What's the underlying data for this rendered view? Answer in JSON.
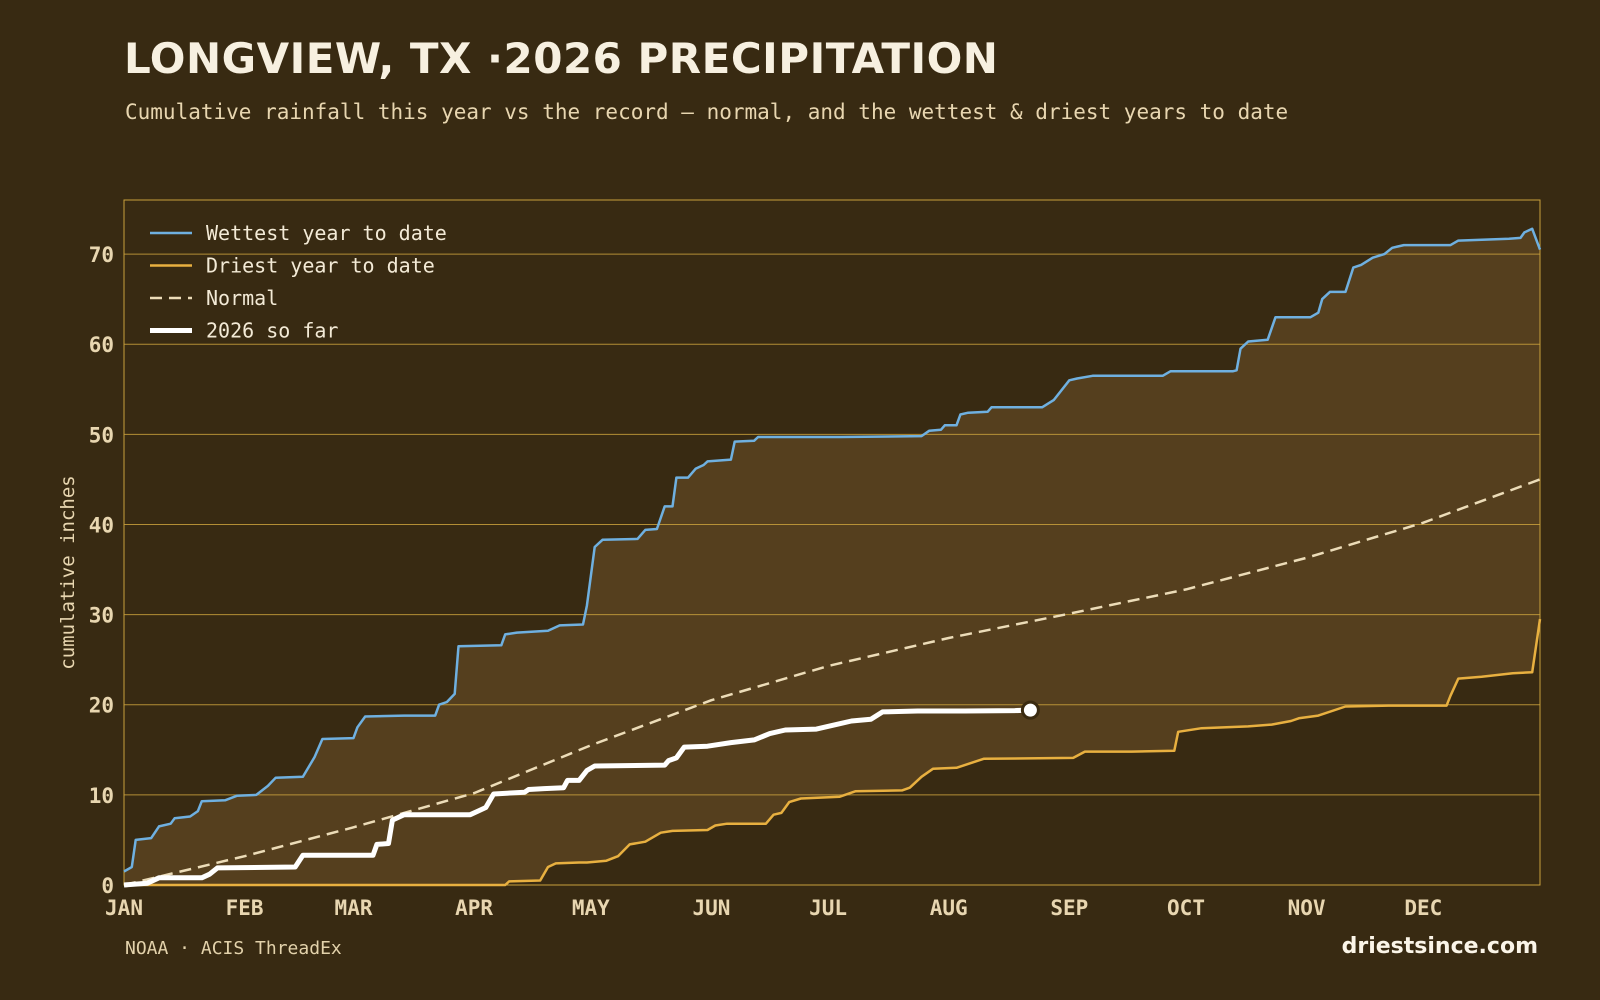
{
  "header": {
    "title": "LONGVIEW, TX ·2026 PRECIPITATION",
    "subtitle": "Cumulative rainfall this year vs the record — normal, and the wettest & driest years to date"
  },
  "footer": {
    "source": "NOAA · ACIS ThreadEx",
    "brand": "driestsince.com"
  },
  "colors": {
    "background": "#382a12",
    "band_fill": "#553f1e",
    "grid": "#c9a03c",
    "wettest": "#6fb0e0",
    "driest": "#e8b040",
    "normal": "#ecdcb8",
    "current": "#ffffff",
    "tick_text": "#e8d6b0"
  },
  "chart_data": {
    "type": "line",
    "ylabel": "cumulative inches",
    "ylim": [
      0,
      76
    ],
    "y_ticks": [
      0,
      10,
      20,
      30,
      40,
      50,
      60,
      70
    ],
    "x_ticks": [
      "JAN",
      "FEB",
      "MAR",
      "APR",
      "MAY",
      "JUN",
      "JUL",
      "AUG",
      "SEP",
      "OCT",
      "NOV",
      "DEC"
    ],
    "x_unit": "day of year",
    "xlim": [
      1,
      365
    ],
    "x_tick_days": [
      1,
      32,
      60,
      91,
      121,
      152,
      182,
      213,
      244,
      274,
      305,
      335
    ],
    "grid": "horizontal",
    "legend_position": "top-left",
    "legend": [
      "Wettest year to date",
      "Driest year to date",
      "Normal",
      "2026 so far"
    ],
    "series": [
      {
        "name": "Wettest year to date",
        "style": "solid",
        "points": [
          [
            1,
            1.5
          ],
          [
            3,
            2
          ],
          [
            4,
            5
          ],
          [
            8,
            5.2
          ],
          [
            10,
            6.5
          ],
          [
            13,
            6.8
          ],
          [
            14,
            7.4
          ],
          [
            18,
            7.6
          ],
          [
            20,
            8.2
          ],
          [
            21,
            9.3
          ],
          [
            27,
            9.4
          ],
          [
            30,
            9.9
          ],
          [
            35,
            10
          ],
          [
            38,
            11
          ],
          [
            40,
            11.9
          ],
          [
            47,
            12
          ],
          [
            50,
            14.2
          ],
          [
            52,
            16.2
          ],
          [
            60,
            16.3
          ],
          [
            61,
            17.5
          ],
          [
            63,
            18.7
          ],
          [
            73,
            18.8
          ],
          [
            81,
            18.8
          ],
          [
            82,
            20
          ],
          [
            84,
            20.3
          ],
          [
            86,
            21.2
          ],
          [
            87,
            26.5
          ],
          [
            98,
            26.6
          ],
          [
            99,
            27.8
          ],
          [
            102,
            28
          ],
          [
            110,
            28.2
          ],
          [
            113,
            28.8
          ],
          [
            119,
            28.9
          ],
          [
            120,
            31
          ],
          [
            122,
            37.5
          ],
          [
            124,
            38.3
          ],
          [
            133,
            38.4
          ],
          [
            135,
            39.4
          ],
          [
            138,
            39.5
          ],
          [
            140,
            42
          ],
          [
            142,
            42
          ],
          [
            143,
            45.2
          ],
          [
            146,
            45.2
          ],
          [
            148,
            46.2
          ],
          [
            150,
            46.6
          ],
          [
            151,
            47
          ],
          [
            157,
            47.2
          ],
          [
            158,
            49.2
          ],
          [
            163,
            49.3
          ],
          [
            164,
            49.7
          ],
          [
            185,
            49.7
          ],
          [
            206,
            49.8
          ],
          [
            208,
            50.4
          ],
          [
            211,
            50.5
          ],
          [
            212,
            51
          ],
          [
            215,
            51
          ],
          [
            216,
            52.2
          ],
          [
            218,
            52.4
          ],
          [
            223,
            52.5
          ],
          [
            224,
            53
          ],
          [
            237,
            53
          ],
          [
            240,
            53.8
          ],
          [
            244,
            56
          ],
          [
            246,
            56.2
          ],
          [
            250,
            56.5
          ],
          [
            268,
            56.5
          ],
          [
            270,
            57
          ],
          [
            286,
            57
          ],
          [
            287,
            57.1
          ],
          [
            288,
            59.5
          ],
          [
            290,
            60.3
          ],
          [
            295,
            60.5
          ],
          [
            297,
            63
          ],
          [
            306,
            63
          ],
          [
            308,
            63.5
          ],
          [
            309,
            65
          ],
          [
            311,
            65.8
          ],
          [
            315,
            65.8
          ],
          [
            317,
            68.5
          ],
          [
            319,
            68.8
          ],
          [
            322,
            69.6
          ],
          [
            325,
            70
          ],
          [
            327,
            70.7
          ],
          [
            330,
            71
          ],
          [
            342,
            71
          ],
          [
            344,
            71.5
          ],
          [
            357,
            71.7
          ],
          [
            360,
            71.8
          ],
          [
            361,
            72.4
          ],
          [
            363,
            72.8
          ],
          [
            365,
            70.5
          ]
        ]
      },
      {
        "name": "Driest year to date",
        "style": "solid",
        "points": [
          [
            1,
            0
          ],
          [
            99,
            0
          ],
          [
            100,
            0.4
          ],
          [
            108,
            0.5
          ],
          [
            110,
            2
          ],
          [
            112,
            2.4
          ],
          [
            118,
            2.5
          ],
          [
            120,
            2.5
          ],
          [
            125,
            2.7
          ],
          [
            128,
            3.2
          ],
          [
            131,
            4.5
          ],
          [
            135,
            4.8
          ],
          [
            139,
            5.8
          ],
          [
            142,
            6
          ],
          [
            151,
            6.1
          ],
          [
            153,
            6.6
          ],
          [
            156,
            6.8
          ],
          [
            166,
            6.8
          ],
          [
            168,
            7.8
          ],
          [
            170,
            8
          ],
          [
            172,
            9.2
          ],
          [
            175,
            9.6
          ],
          [
            185,
            9.8
          ],
          [
            189,
            10.4
          ],
          [
            201,
            10.5
          ],
          [
            203,
            10.8
          ],
          [
            206,
            12
          ],
          [
            209,
            12.9
          ],
          [
            215,
            13
          ],
          [
            222,
            14
          ],
          [
            245,
            14.1
          ],
          [
            248,
            14.8
          ],
          [
            260,
            14.8
          ],
          [
            271,
            14.9
          ],
          [
            272,
            17
          ],
          [
            278,
            17.4
          ],
          [
            290,
            17.6
          ],
          [
            296,
            17.8
          ],
          [
            301,
            18.2
          ],
          [
            303,
            18.5
          ],
          [
            308,
            18.8
          ],
          [
            315,
            19.8
          ],
          [
            326,
            19.9
          ],
          [
            341,
            19.9
          ],
          [
            342,
            21
          ],
          [
            344,
            22.9
          ],
          [
            350,
            23.1
          ],
          [
            358,
            23.5
          ],
          [
            363,
            23.6
          ],
          [
            365,
            29.5
          ]
        ]
      },
      {
        "name": "Normal",
        "style": "dashed",
        "points": [
          [
            1,
            0
          ],
          [
            32,
            3.2
          ],
          [
            60,
            6.4
          ],
          [
            91,
            10.2
          ],
          [
            121,
            15.5
          ],
          [
            152,
            20.5
          ],
          [
            182,
            24.3
          ],
          [
            213,
            27.4
          ],
          [
            244,
            30.1
          ],
          [
            274,
            32.8
          ],
          [
            305,
            36.3
          ],
          [
            335,
            40.2
          ],
          [
            365,
            45
          ]
        ]
      },
      {
        "name": "2026 so far",
        "style": "thick",
        "points": [
          [
            1,
            0
          ],
          [
            7,
            0.2
          ],
          [
            10,
            0.8
          ],
          [
            21,
            0.8
          ],
          [
            23,
            1.2
          ],
          [
            25,
            1.9
          ],
          [
            45,
            2
          ],
          [
            47,
            3.3
          ],
          [
            65,
            3.3
          ],
          [
            66,
            4.5
          ],
          [
            69,
            4.6
          ],
          [
            70,
            7.2
          ],
          [
            73,
            7.8
          ],
          [
            90,
            7.8
          ],
          [
            92,
            8.2
          ],
          [
            94,
            8.6
          ],
          [
            96,
            10.1
          ],
          [
            104,
            10.3
          ],
          [
            105,
            10.6
          ],
          [
            109,
            10.7
          ],
          [
            114,
            10.8
          ],
          [
            115,
            11.6
          ],
          [
            118,
            11.6
          ],
          [
            120,
            12.7
          ],
          [
            122,
            13.2
          ],
          [
            140,
            13.3
          ],
          [
            141,
            13.8
          ],
          [
            143,
            14.1
          ],
          [
            145,
            15.3
          ],
          [
            151,
            15.4
          ],
          [
            157,
            15.8
          ],
          [
            163,
            16.1
          ],
          [
            167,
            16.8
          ],
          [
            171,
            17.2
          ],
          [
            179,
            17.3
          ],
          [
            185,
            17.9
          ],
          [
            188,
            18.2
          ],
          [
            193,
            18.4
          ],
          [
            196,
            19.2
          ],
          [
            205,
            19.3
          ],
          [
            217,
            19.3
          ],
          [
            230,
            19.35
          ],
          [
            234,
            19.4
          ]
        ],
        "current_point": [
          234,
          19.4
        ]
      }
    ]
  }
}
